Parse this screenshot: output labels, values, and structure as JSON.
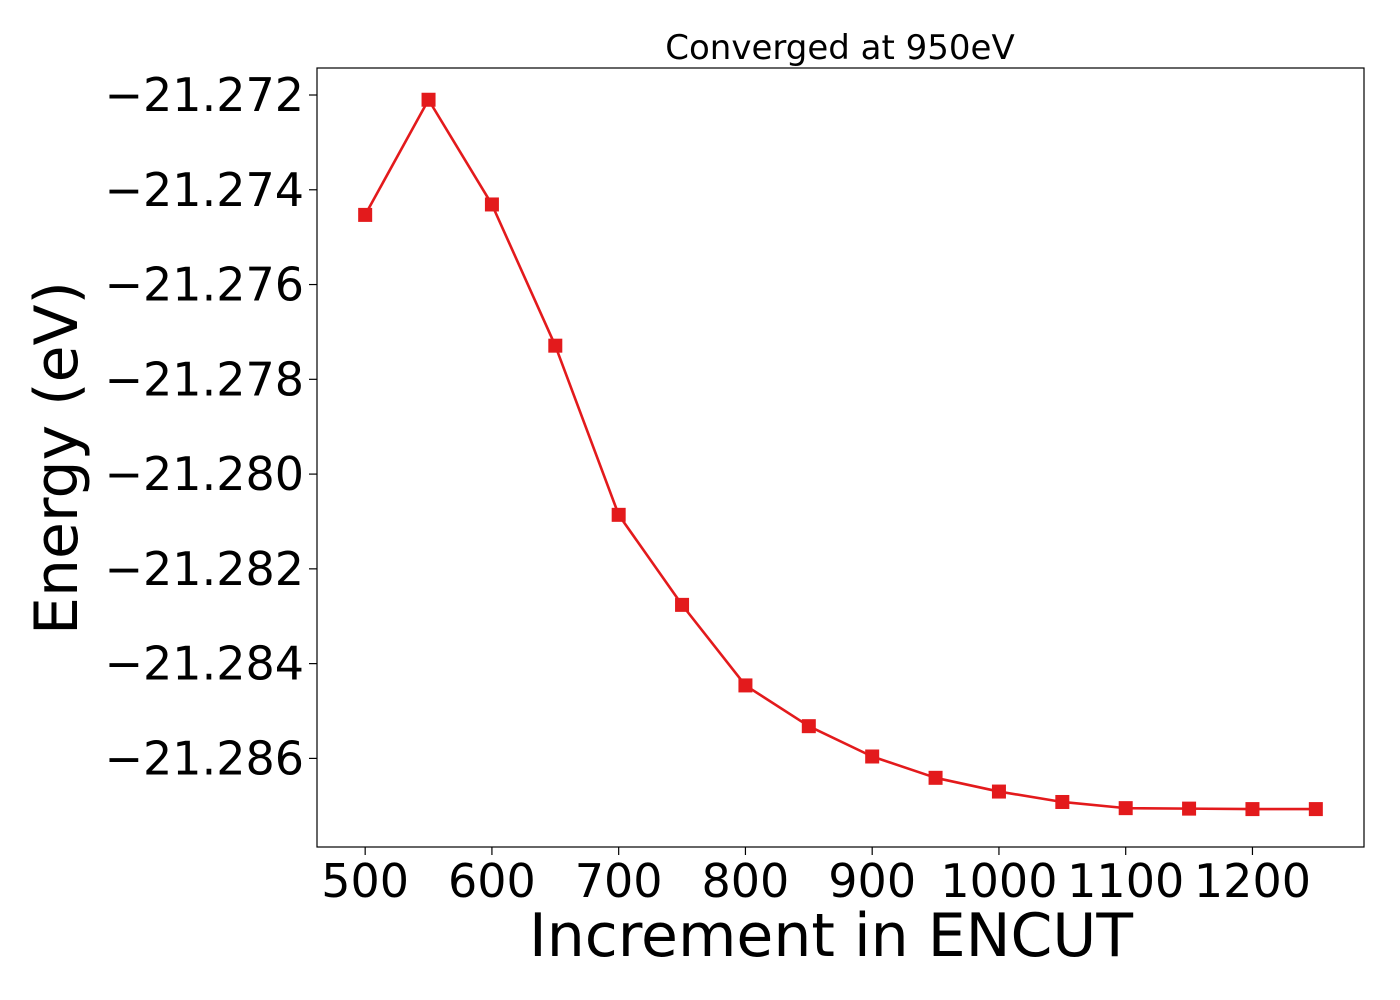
{
  "chart_data": {
    "type": "line",
    "title": "Converged at 950eV",
    "xlabel": "Increment in ENCUT",
    "ylabel": "Energy (eV)",
    "xlim": [
      462,
      1288
    ],
    "ylim": [
      -21.28787,
      -21.27143
    ],
    "x_ticks": [
      500,
      600,
      700,
      800,
      900,
      1000,
      1100,
      1200
    ],
    "x_tick_labels": [
      "500",
      "600",
      "700",
      "800",
      "900",
      "1000",
      "1100",
      "1200"
    ],
    "y_ticks": [
      -21.272,
      -21.274,
      -21.276,
      -21.278,
      -21.28,
      -21.282,
      -21.284,
      -21.286
    ],
    "y_tick_labels": [
      "−21.272",
      "−21.274",
      "−21.276",
      "−21.278",
      "−21.280",
      "−21.282",
      "−21.284",
      "−21.286"
    ],
    "grid": false,
    "series": [
      {
        "color": "#e31a1c",
        "marker": "square",
        "x": [
          500,
          550,
          600,
          650,
          700,
          750,
          800,
          850,
          900,
          950,
          1000,
          1050,
          1100,
          1150,
          1200,
          1250
        ],
        "y": [
          -21.27453,
          -21.2721,
          -21.27431,
          -21.27729,
          -21.28086,
          -21.28276,
          -21.28446,
          -21.28532,
          -21.28596,
          -21.28641,
          -21.2867,
          -21.28692,
          -21.28705,
          -21.28706,
          -21.28707,
          -21.28707
        ]
      }
    ]
  }
}
